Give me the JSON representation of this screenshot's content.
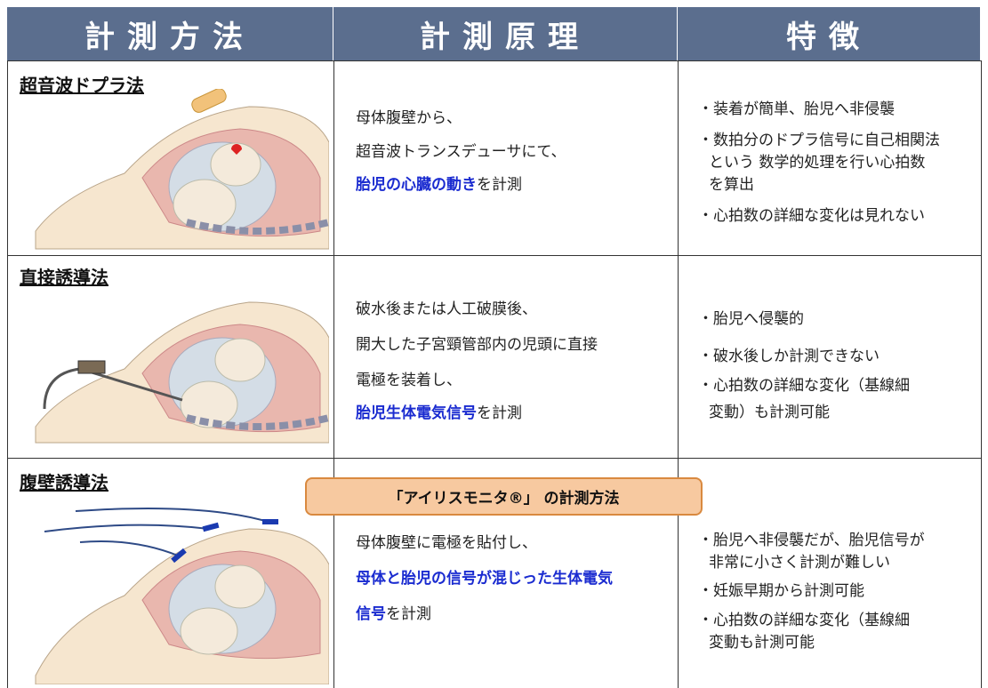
{
  "header": [
    "計測方法",
    "計測原理",
    "特徴"
  ],
  "rows": [
    {
      "method": "超音波ドプラ法",
      "principle": [
        [
          {
            "text": "母体腹壁から、"
          }
        ],
        [
          {
            "text": "超音波トランスデューサにて、"
          }
        ],
        [
          {
            "text": "胎児の心臓の動き",
            "emphasis": true
          },
          {
            "text": "を計測"
          }
        ]
      ],
      "features": [
        [
          "・装着が簡単、胎児へ非侵襲"
        ],
        [
          "・数拍分のドプラ信号に自己相関法",
          "という 数学的処理を行い心拍数",
          "を算出"
        ],
        [
          "・心拍数の詳細な変化は見れない"
        ]
      ]
    },
    {
      "method": "直接誘導法",
      "principle": [
        [
          {
            "text": "破水後または人工破膜後、"
          }
        ],
        [
          {
            "text": "開大した子宮頸管部内の児頭に直接"
          }
        ],
        [
          {
            "text": "電極を装着し、"
          }
        ],
        [
          {
            "text": "胎児生体電気信号",
            "emphasis": true
          },
          {
            "text": "を計測"
          }
        ]
      ],
      "features": [
        [
          "・胎児へ侵襲的"
        ],
        [
          "・破水後しか計測できない"
        ],
        [
          "・心拍数の詳細な変化（基線細",
          "変動）も計測可能"
        ]
      ]
    },
    {
      "method": "腹壁誘導法",
      "callout": "「アイリスモニタ®」 の計測方法",
      "principle": [
        [
          {
            "text": "母体腹壁に電極を貼付し、"
          }
        ],
        [
          {
            "text": "母体と胎児の信号が混じった生体電気",
            "emphasis": true
          }
        ],
        [
          {
            "text": "信号",
            "emphasis": true
          },
          {
            "text": "を計測"
          }
        ]
      ],
      "features": [
        [
          "・胎児へ非侵襲だが、胎児信号が",
          "非常に小さく計測が難しい"
        ],
        [
          "・妊娠早期から計測可能"
        ],
        [
          "・心拍数の詳細な変化（基線細",
          "変動も計測可能"
        ]
      ]
    }
  ]
}
